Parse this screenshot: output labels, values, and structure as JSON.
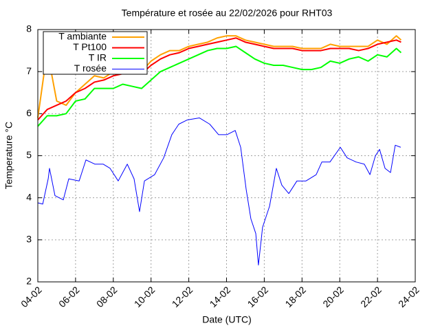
{
  "chart_data": {
    "type": "line",
    "title": "Température et rosée au 22/02/2026 pour RHT03",
    "x_label": "Date (UTC)",
    "y_label": "Temperature °C",
    "xlim": [
      4,
      24
    ],
    "ylim": [
      2,
      8
    ],
    "xticks": [
      {
        "value": 4,
        "label": "04-02"
      },
      {
        "value": 6,
        "label": "06-02"
      },
      {
        "value": 8,
        "label": "08-02"
      },
      {
        "value": 10,
        "label": "10-02"
      },
      {
        "value": 12,
        "label": "12-02"
      },
      {
        "value": 14,
        "label": "14-02"
      },
      {
        "value": 16,
        "label": "16-02"
      },
      {
        "value": 18,
        "label": "18-02"
      },
      {
        "value": 20,
        "label": "20-02"
      },
      {
        "value": 22,
        "label": "22-02"
      },
      {
        "value": 24,
        "label": "24-02"
      }
    ],
    "yticks": [
      2,
      3,
      4,
      5,
      6,
      7,
      8
    ],
    "grid": true,
    "legend": "top-left",
    "x": [
      4,
      4.5,
      5,
      5.5,
      6,
      6.5,
      7,
      7.5,
      8,
      8.5,
      9,
      9.5,
      10,
      10.5,
      11,
      11.5,
      12,
      12.5,
      13,
      13.5,
      14,
      14.5,
      15,
      15.5,
      16,
      16.5,
      17,
      17.5,
      18,
      18.5,
      19,
      19.5,
      20,
      20.5,
      21,
      21.5,
      22,
      22.5,
      23,
      23.25
    ],
    "series": [
      {
        "name": "T ambiante",
        "color": "#ffa000",
        "values": [
          5.9,
          7.5,
          6.3,
          6.2,
          6.5,
          6.7,
          6.9,
          6.85,
          7.0,
          7.1,
          7.1,
          7.0,
          7.25,
          7.4,
          7.5,
          7.5,
          7.6,
          7.65,
          7.7,
          7.8,
          7.85,
          7.85,
          7.75,
          7.7,
          7.65,
          7.6,
          7.6,
          7.6,
          7.55,
          7.55,
          7.55,
          7.65,
          7.6,
          7.6,
          7.6,
          7.6,
          7.75,
          7.65,
          7.85,
          7.75
        ]
      },
      {
        "name": "T Pt100",
        "color": "#ff0000",
        "values": [
          5.85,
          6.1,
          6.2,
          6.3,
          6.5,
          6.6,
          6.75,
          6.8,
          6.9,
          6.95,
          7.0,
          6.95,
          7.15,
          7.3,
          7.4,
          7.45,
          7.55,
          7.6,
          7.65,
          7.7,
          7.75,
          7.8,
          7.7,
          7.65,
          7.6,
          7.55,
          7.55,
          7.55,
          7.5,
          7.5,
          7.5,
          7.55,
          7.55,
          7.55,
          7.5,
          7.55,
          7.65,
          7.7,
          7.75,
          7.7
        ]
      },
      {
        "name": "T IR",
        "color": "#00ff00",
        "values": [
          5.7,
          5.95,
          5.95,
          6.0,
          6.3,
          6.35,
          6.6,
          6.6,
          6.6,
          6.7,
          6.65,
          6.6,
          6.8,
          7.0,
          7.1,
          7.2,
          7.3,
          7.4,
          7.5,
          7.55,
          7.55,
          7.6,
          7.45,
          7.3,
          7.2,
          7.15,
          7.15,
          7.1,
          7.05,
          7.05,
          7.1,
          7.25,
          7.2,
          7.3,
          7.35,
          7.25,
          7.4,
          7.35,
          7.55,
          7.45
        ]
      },
      {
        "name": "T rosée",
        "color": "#0000ff",
        "x": [
          4.0,
          4.26,
          4.55,
          4.62,
          4.91,
          5.35,
          5.64,
          6.19,
          6.55,
          7.02,
          7.46,
          7.83,
          8.26,
          8.74,
          9.1,
          9.39,
          9.65,
          10.19,
          10.67,
          11.1,
          11.47,
          11.91,
          12.56,
          13.11,
          13.58,
          14.02,
          14.46,
          14.75,
          15.04,
          15.29,
          15.55,
          15.69,
          15.91,
          16.28,
          16.64,
          16.93,
          17.3,
          17.73,
          18.21,
          18.75,
          19.05,
          19.48,
          20.03,
          20.39,
          20.87,
          21.3,
          21.6,
          21.89,
          22.11,
          22.4,
          22.69,
          22.94,
          23.23
        ],
        "values": [
          3.88,
          3.85,
          4.45,
          4.7,
          4.05,
          3.95,
          4.45,
          4.4,
          4.9,
          4.8,
          4.8,
          4.7,
          4.4,
          4.8,
          4.45,
          3.67,
          4.4,
          4.55,
          4.95,
          5.5,
          5.75,
          5.85,
          5.9,
          5.75,
          5.5,
          5.5,
          5.6,
          5.2,
          4.2,
          3.5,
          3.15,
          2.4,
          3.3,
          3.8,
          4.7,
          4.3,
          4.1,
          4.4,
          4.4,
          4.55,
          4.85,
          4.85,
          5.2,
          4.95,
          4.85,
          4.8,
          4.55,
          5.0,
          5.15,
          4.7,
          4.6,
          5.25,
          5.2
        ]
      }
    ]
  }
}
